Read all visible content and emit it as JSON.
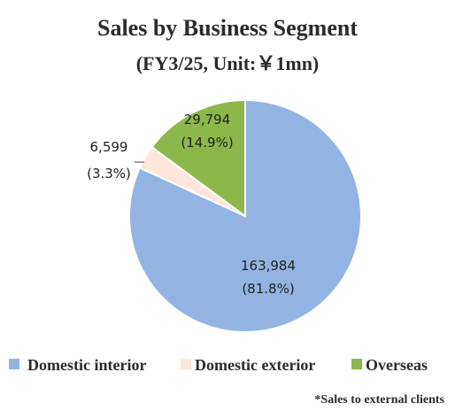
{
  "chart_data": {
    "type": "pie",
    "title": "Sales by Business Segment",
    "subtitle": "(FY3/25, Unit:￥1mn)",
    "categories": [
      "Domestic interior",
      "Domestic exterior",
      "Overseas"
    ],
    "values": [
      163984,
      6599,
      29794
    ],
    "percent_labels": [
      "(81.8%)",
      "(3.3%)",
      "(14.9%)"
    ],
    "value_labels": [
      "163,984",
      "6,599",
      "29,794"
    ],
    "colors": [
      "#93b4e3",
      "#fde7da",
      "#8eb74b"
    ],
    "start_angle_deg": 0,
    "direction": "clockwise",
    "legend_position": "bottom",
    "footnote": "*Sales to external clients"
  }
}
